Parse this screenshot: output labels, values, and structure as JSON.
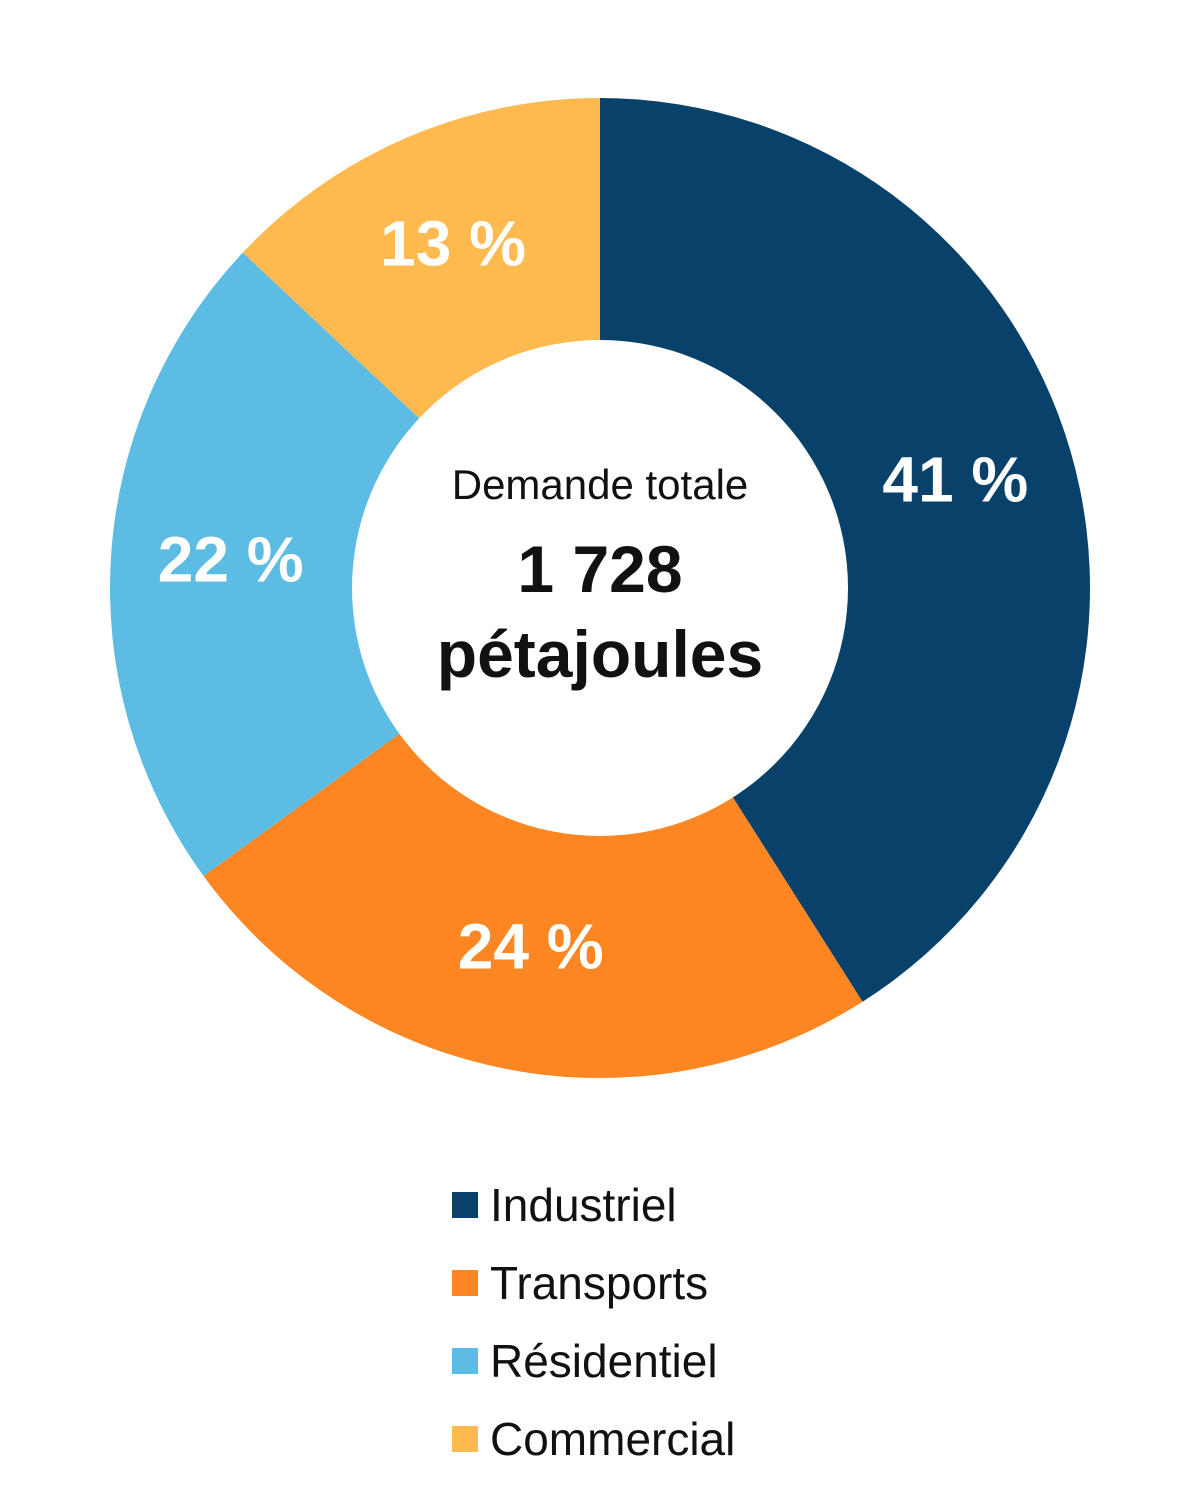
{
  "chart_data": {
    "type": "pie",
    "categories": [
      "Industriel",
      "Transports",
      "Résidentiel",
      "Commercial"
    ],
    "values": [
      41,
      24,
      22,
      13
    ],
    "value_labels": [
      "41 %",
      "24 %",
      "22 %",
      "13 %"
    ],
    "colors": [
      "#08416a",
      "#fb8622",
      "#5cbce4",
      "#feba4f"
    ],
    "donut": true,
    "center_text": {
      "caption": "Demande totale",
      "value": "1 728",
      "unit": "pétajoules"
    },
    "legend": {
      "placement": "bottom",
      "entries": [
        "Industriel",
        "Transports",
        "Résidentiel",
        "Commercial"
      ]
    }
  }
}
